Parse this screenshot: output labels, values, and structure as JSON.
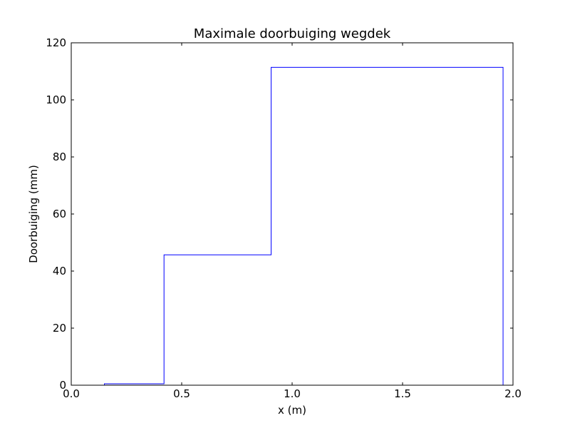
{
  "chart_data": {
    "type": "line",
    "title": "Maximale doorbuiging wegdek",
    "xlabel": "x (m)",
    "ylabel": "Doorbuiging (mm)",
    "xlim": [
      0.0,
      2.0
    ],
    "ylim": [
      0,
      120
    ],
    "x_ticks": [
      "0.0",
      "0.5",
      "1.0",
      "1.5",
      "2.0"
    ],
    "y_ticks": [
      "0",
      "20",
      "40",
      "60",
      "80",
      "100",
      "120"
    ],
    "grid": false,
    "colors": {
      "line": "#0000ff",
      "axes": "#000000",
      "background": "#ffffff"
    },
    "series": [
      {
        "step": "post",
        "x": [
          0.0,
          0.15,
          0.42,
          0.905,
          1.955,
          2.0
        ],
        "y": [
          0.0,
          0.5,
          45.7,
          111.4,
          0.0,
          0.0
        ]
      }
    ]
  }
}
